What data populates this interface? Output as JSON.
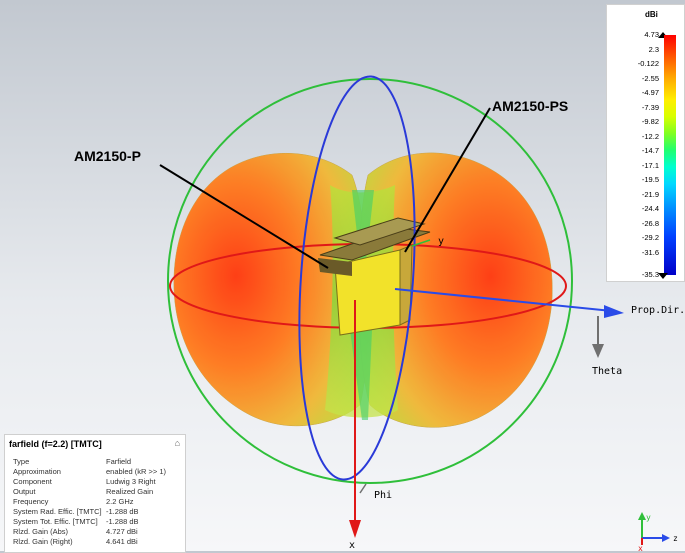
{
  "callouts": {
    "left_label": "AM2150-P",
    "right_label": "AM2150-PS"
  },
  "axes": {
    "y": "y",
    "prop_dir": "Prop.Dir.",
    "theta": "Theta",
    "phi": "Phi",
    "x": "x"
  },
  "colorbar": {
    "unit": "dBi",
    "ticks": [
      "4.73",
      "2.3",
      "-0.122",
      "-2.55",
      "-4.97",
      "-7.39",
      "-9.82",
      "-12.2",
      "-14.7",
      "-17.1",
      "-19.5",
      "-21.9",
      "-24.4",
      "-26.8",
      "-29.2",
      "-31.6",
      "-35.3"
    ]
  },
  "info_panel": {
    "title": "farfield (f=2.2) [TMTC]",
    "rows": [
      {
        "key": "Type",
        "value": "Farfield"
      },
      {
        "key": "Approximation",
        "value": "enabled (kR >> 1)"
      },
      {
        "key": "Component",
        "value": "Ludwig 3 Right"
      },
      {
        "key": "Output",
        "value": "Realized Gain"
      },
      {
        "key": "Frequency",
        "value": "2.2 GHz"
      },
      {
        "key": "System Rad. Effic. [TMTC]",
        "value": "-1.288 dB"
      },
      {
        "key": "System Tot. Effic. [TMTC]",
        "value": "-1.288 dB"
      },
      {
        "key": "Rlzd. Gain (Abs)",
        "value": "4.727 dBi"
      },
      {
        "key": "Rlzd. Gain (Right)",
        "value": "4.641 dBi"
      }
    ]
  },
  "triad": {
    "y": "y",
    "z": "z",
    "x": "x"
  },
  "colors": {
    "x_axis": "#e01818",
    "prop_dir": "#2a4be8",
    "theta": "#707070",
    "green_ring": "#2fbf3a",
    "blue_ring": "#2a3ad8",
    "red_ring": "#e01818"
  }
}
